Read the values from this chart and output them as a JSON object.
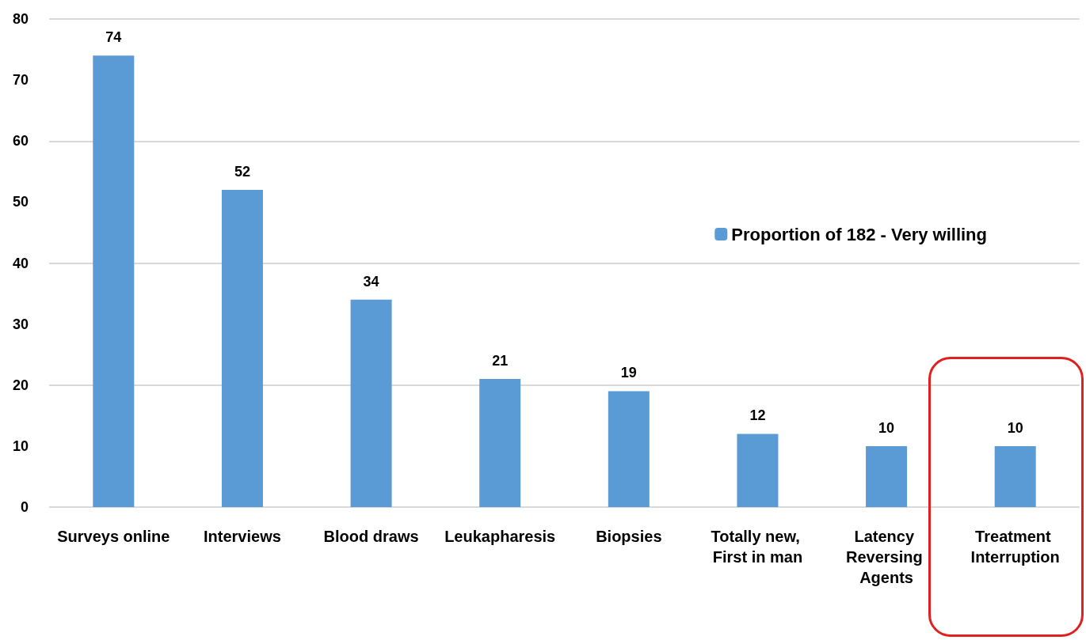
{
  "chart_data": {
    "type": "bar",
    "categories": [
      "Surveys online",
      "Interviews",
      "Blood draws",
      "Leukapharesis",
      "Biopsies",
      "Totally new, First in man",
      "Latency Reversing Agents",
      "Treatment Interruption"
    ],
    "series": [
      {
        "name": "Proportion of 182 - Very willing",
        "color": "#5b9bd5",
        "values": [
          74,
          52,
          34,
          21,
          19,
          12,
          10,
          10
        ]
      }
    ],
    "ylim": [
      0,
      80
    ],
    "yticks": [
      0,
      10,
      20,
      30,
      40,
      50,
      60,
      70,
      80
    ],
    "grid": "y",
    "legend": "right",
    "data_labels": true
  }
}
